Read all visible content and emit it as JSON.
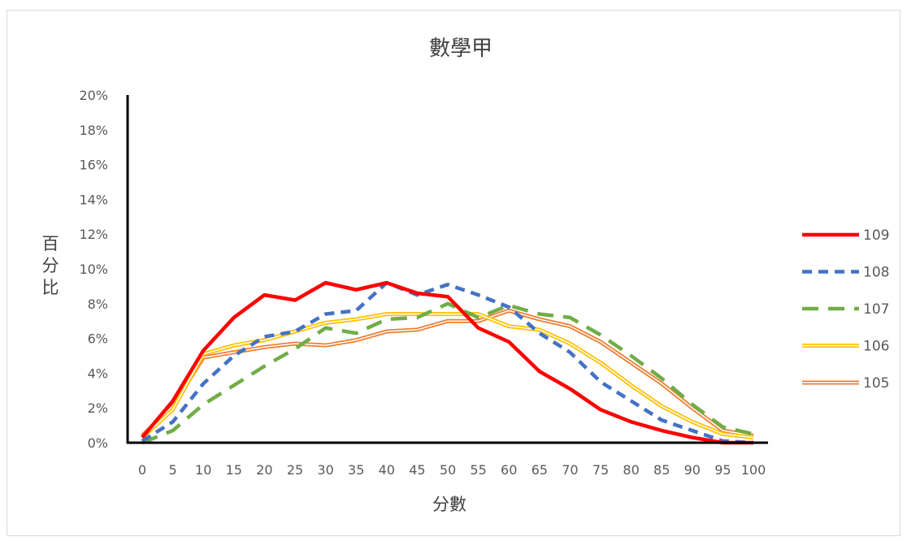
{
  "chart_data": {
    "type": "line",
    "title": "數學甲",
    "xlabel": "分數",
    "ylabel": "百分比",
    "x": [
      0,
      5,
      10,
      15,
      20,
      25,
      30,
      35,
      40,
      45,
      50,
      55,
      60,
      65,
      70,
      75,
      80,
      85,
      90,
      95,
      100
    ],
    "x_tick_labels": [
      "0",
      "5",
      "10",
      "15",
      "20",
      "25",
      "30",
      "35",
      "40",
      "45",
      "50",
      "55",
      "60",
      "65",
      "70",
      "75",
      "80",
      "85",
      "90",
      "95",
      "100"
    ],
    "ylim": [
      0,
      20
    ],
    "y_ticks": [
      0,
      2,
      4,
      6,
      8,
      10,
      12,
      14,
      16,
      18,
      20
    ],
    "y_tick_labels": [
      "0%",
      "2%",
      "4%",
      "6%",
      "8%",
      "10%",
      "12%",
      "14%",
      "16%",
      "18%",
      "20%"
    ],
    "legend_position": "right",
    "grid": false,
    "series": [
      {
        "name": "109",
        "color": "#ff0000",
        "style": "solid",
        "values": [
          0.3,
          2.4,
          5.3,
          7.2,
          8.5,
          8.2,
          9.2,
          8.8,
          9.2,
          8.6,
          8.4,
          6.6,
          5.8,
          4.1,
          3.1,
          1.9,
          1.2,
          0.7,
          0.3,
          0.0,
          0.0
        ]
      },
      {
        "name": "108",
        "color": "#4472c4",
        "style": "dashed",
        "values": [
          0.1,
          1.2,
          3.4,
          5.0,
          6.1,
          6.4,
          7.4,
          7.6,
          9.2,
          8.5,
          9.1,
          8.5,
          7.8,
          6.3,
          5.2,
          3.5,
          2.4,
          1.3,
          0.7,
          0.1,
          0.0
        ]
      },
      {
        "name": "107",
        "color": "#70ad47",
        "style": "dashed-long",
        "values": [
          0.0,
          0.7,
          2.2,
          3.3,
          4.4,
          5.4,
          6.6,
          6.3,
          7.1,
          7.2,
          8.0,
          7.2,
          7.9,
          7.4,
          7.2,
          6.2,
          5.0,
          3.7,
          2.2,
          0.9,
          0.5
        ]
      },
      {
        "name": "106",
        "color": "#ffc000",
        "style": "double",
        "values": [
          0.3,
          1.9,
          5.1,
          5.6,
          5.9,
          6.4,
          6.9,
          7.1,
          7.4,
          7.4,
          7.4,
          7.4,
          6.7,
          6.5,
          5.7,
          4.6,
          3.3,
          2.1,
          1.2,
          0.5,
          0.3
        ]
      },
      {
        "name": "105",
        "color": "#ed7d31",
        "style": "double",
        "values": [
          0.4,
          2.1,
          4.9,
          5.2,
          5.5,
          5.7,
          5.6,
          5.9,
          6.4,
          6.5,
          7.0,
          7.0,
          7.6,
          7.1,
          6.7,
          5.8,
          4.6,
          3.4,
          2.0,
          0.7,
          0.4
        ]
      }
    ]
  }
}
